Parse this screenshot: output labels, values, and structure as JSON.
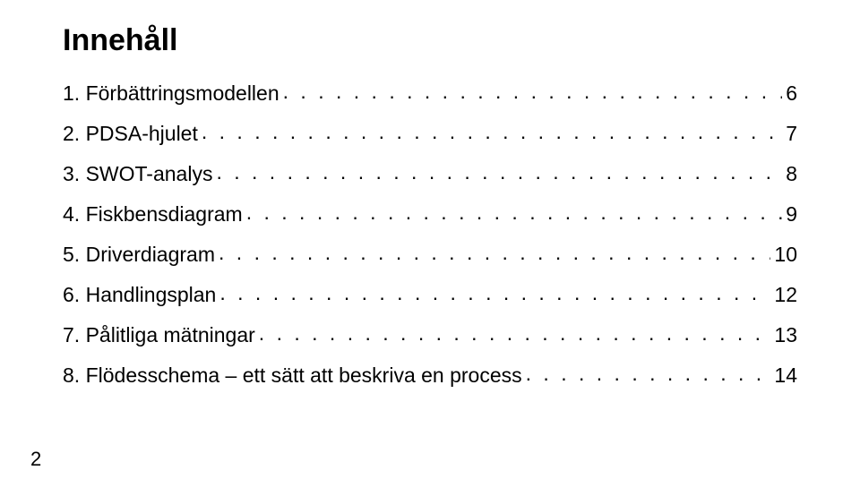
{
  "title": "Innehåll",
  "toc": [
    {
      "num": "1.",
      "label": "Förbättringsmodellen",
      "page": "6"
    },
    {
      "num": "2.",
      "label": "PDSA-hjulet",
      "page": "7"
    },
    {
      "num": "3.",
      "label": "SWOT-analys",
      "page": "8"
    },
    {
      "num": "4.",
      "label": "Fiskbensdiagram",
      "page": "9"
    },
    {
      "num": "5.",
      "label": "Driverdiagram",
      "page": "10"
    },
    {
      "num": "6.",
      "label": "Handlingsplan",
      "page": "12"
    },
    {
      "num": "7.",
      "label": "Pålitliga mätningar",
      "page": "13"
    },
    {
      "num": "8.",
      "label": "Flödesschema – ett sätt att beskriva en process",
      "page": "14"
    }
  ],
  "page_number": "2",
  "dot_char": "."
}
